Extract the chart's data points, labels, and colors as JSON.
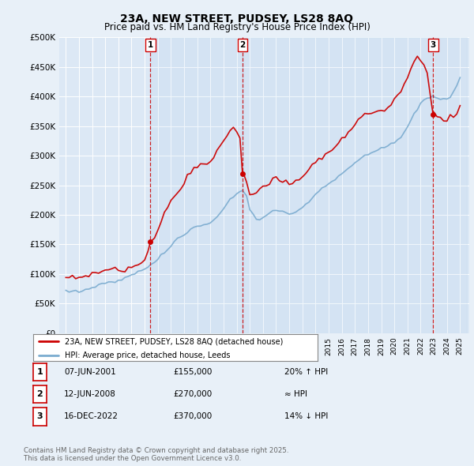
{
  "title": "23A, NEW STREET, PUDSEY, LS28 8AQ",
  "subtitle": "Price paid vs. HM Land Registry's House Price Index (HPI)",
  "bg_color": "#e8f0f8",
  "plot_bg_color": "#dce8f5",
  "ylim": [
    0,
    500000
  ],
  "yticks": [
    0,
    50000,
    100000,
    150000,
    200000,
    250000,
    300000,
    350000,
    400000,
    450000,
    500000
  ],
  "ytick_labels": [
    "£0",
    "£50K",
    "£100K",
    "£150K",
    "£200K",
    "£250K",
    "£300K",
    "£350K",
    "£400K",
    "£450K",
    "£500K"
  ],
  "sales": [
    {
      "date_num": 2001.44,
      "price": 155000,
      "label": "1"
    },
    {
      "date_num": 2008.44,
      "price": 270000,
      "label": "2"
    },
    {
      "date_num": 2022.96,
      "price": 370000,
      "label": "3"
    }
  ],
  "vline_color": "#cc0000",
  "line_color": "#cc0000",
  "hpi_color": "#7aabcf",
  "legend1_label": "23A, NEW STREET, PUDSEY, LS28 8AQ (detached house)",
  "legend2_label": "HPI: Average price, detached house, Leeds",
  "table": [
    {
      "num": "1",
      "date": "07-JUN-2001",
      "price": "£155,000",
      "rel": "20% ↑ HPI"
    },
    {
      "num": "2",
      "date": "12-JUN-2008",
      "price": "£270,000",
      "rel": "≈ HPI"
    },
    {
      "num": "3",
      "date": "16-DEC-2022",
      "price": "£370,000",
      "rel": "14% ↓ HPI"
    }
  ],
  "footer": "Contains HM Land Registry data © Crown copyright and database right 2025.\nThis data is licensed under the Open Government Licence v3.0.",
  "hpi_years": [
    1995.0,
    1995.25,
    1995.5,
    1995.75,
    1996.0,
    1996.25,
    1996.5,
    1996.75,
    1997.0,
    1997.25,
    1997.5,
    1997.75,
    1998.0,
    1998.25,
    1998.5,
    1998.75,
    1999.0,
    1999.25,
    1999.5,
    1999.75,
    2000.0,
    2000.25,
    2000.5,
    2000.75,
    2001.0,
    2001.25,
    2001.44,
    2001.5,
    2001.75,
    2002.0,
    2002.25,
    2002.5,
    2002.75,
    2003.0,
    2003.25,
    2003.5,
    2003.75,
    2004.0,
    2004.25,
    2004.5,
    2004.75,
    2005.0,
    2005.25,
    2005.5,
    2005.75,
    2006.0,
    2006.25,
    2006.5,
    2006.75,
    2007.0,
    2007.25,
    2007.5,
    2007.75,
    2008.0,
    2008.25,
    2008.44,
    2008.5,
    2008.75,
    2009.0,
    2009.25,
    2009.5,
    2009.75,
    2010.0,
    2010.25,
    2010.5,
    2010.75,
    2011.0,
    2011.25,
    2011.5,
    2011.75,
    2012.0,
    2012.25,
    2012.5,
    2012.75,
    2013.0,
    2013.25,
    2013.5,
    2013.75,
    2014.0,
    2014.25,
    2014.5,
    2014.75,
    2015.0,
    2015.25,
    2015.5,
    2015.75,
    2016.0,
    2016.25,
    2016.5,
    2016.75,
    2017.0,
    2017.25,
    2017.5,
    2017.75,
    2018.0,
    2018.25,
    2018.5,
    2018.75,
    2019.0,
    2019.25,
    2019.5,
    2019.75,
    2020.0,
    2020.25,
    2020.5,
    2020.75,
    2021.0,
    2021.25,
    2021.5,
    2021.75,
    2022.0,
    2022.25,
    2022.5,
    2022.75,
    2022.96,
    2023.0,
    2023.25,
    2023.5,
    2023.75,
    2024.0,
    2024.25,
    2024.5,
    2024.75,
    2025.0
  ],
  "hpi_values": [
    72000,
    71000,
    70000,
    71000,
    72000,
    73000,
    74000,
    75000,
    77000,
    79000,
    81000,
    83000,
    84000,
    85000,
    86000,
    87000,
    89000,
    91000,
    93000,
    96000,
    99000,
    101000,
    103000,
    106000,
    109000,
    112000,
    115000,
    116000,
    119000,
    124000,
    130000,
    136000,
    142000,
    148000,
    154000,
    159000,
    163000,
    167000,
    171000,
    175000,
    178000,
    180000,
    182000,
    183000,
    184000,
    186000,
    190000,
    196000,
    202000,
    210000,
    218000,
    226000,
    232000,
    236000,
    240000,
    242000,
    240000,
    230000,
    210000,
    200000,
    195000,
    192000,
    195000,
    198000,
    202000,
    206000,
    208000,
    207000,
    205000,
    204000,
    203000,
    204000,
    206000,
    208000,
    212000,
    217000,
    222000,
    228000,
    234000,
    240000,
    245000,
    249000,
    253000,
    257000,
    261000,
    265000,
    270000,
    274000,
    278000,
    282000,
    287000,
    292000,
    297000,
    301000,
    304000,
    307000,
    309000,
    311000,
    313000,
    315000,
    317000,
    319000,
    322000,
    326000,
    332000,
    340000,
    350000,
    360000,
    370000,
    380000,
    388000,
    394000,
    398000,
    400000,
    402000,
    400000,
    397000,
    395000,
    394000,
    396000,
    400000,
    408000,
    418000,
    430000
  ],
  "sold_years": [
    1995.0,
    1995.25,
    1995.5,
    1995.75,
    1996.0,
    1996.25,
    1996.5,
    1996.75,
    1997.0,
    1997.25,
    1997.5,
    1997.75,
    1998.0,
    1998.25,
    1998.5,
    1998.75,
    1999.0,
    1999.25,
    1999.5,
    1999.75,
    2000.0,
    2000.25,
    2000.5,
    2000.75,
    2001.0,
    2001.25,
    2001.44,
    2001.5,
    2001.75,
    2002.0,
    2002.25,
    2002.5,
    2002.75,
    2003.0,
    2003.25,
    2003.5,
    2003.75,
    2004.0,
    2004.25,
    2004.5,
    2004.75,
    2005.0,
    2005.25,
    2005.5,
    2005.75,
    2006.0,
    2006.25,
    2006.5,
    2006.75,
    2007.0,
    2007.25,
    2007.5,
    2007.75,
    2008.0,
    2008.25,
    2008.44,
    2008.5,
    2008.75,
    2009.0,
    2009.25,
    2009.5,
    2009.75,
    2010.0,
    2010.25,
    2010.5,
    2010.75,
    2011.0,
    2011.25,
    2011.5,
    2011.75,
    2012.0,
    2012.25,
    2012.5,
    2012.75,
    2013.0,
    2013.25,
    2013.5,
    2013.75,
    2014.0,
    2014.25,
    2014.5,
    2014.75,
    2015.0,
    2015.25,
    2015.5,
    2015.75,
    2016.0,
    2016.25,
    2016.5,
    2016.75,
    2017.0,
    2017.25,
    2017.5,
    2017.75,
    2018.0,
    2018.25,
    2018.5,
    2018.75,
    2019.0,
    2019.25,
    2019.5,
    2019.75,
    2020.0,
    2020.25,
    2020.5,
    2020.75,
    2021.0,
    2021.25,
    2021.5,
    2021.75,
    2022.0,
    2022.25,
    2022.5,
    2022.75,
    2022.96,
    2023.0,
    2023.25,
    2023.5,
    2023.75,
    2024.0,
    2024.25,
    2024.5,
    2024.75,
    2025.0
  ],
  "sold_values": [
    92000,
    93000,
    94000,
    95000,
    96000,
    97000,
    98000,
    99000,
    101000,
    103000,
    105000,
    107000,
    106000,
    105000,
    104000,
    104000,
    105000,
    107000,
    109000,
    111000,
    113000,
    115000,
    117000,
    119000,
    121000,
    138000,
    155000,
    158000,
    165000,
    175000,
    188000,
    200000,
    212000,
    222000,
    232000,
    240000,
    246000,
    254000,
    263000,
    272000,
    278000,
    282000,
    284000,
    285000,
    286000,
    290000,
    298000,
    308000,
    318000,
    328000,
    336000,
    342000,
    344000,
    340000,
    330000,
    270000,
    268000,
    255000,
    235000,
    232000,
    236000,
    240000,
    248000,
    252000,
    255000,
    258000,
    260000,
    258000,
    256000,
    255000,
    254000,
    255000,
    257000,
    260000,
    264000,
    270000,
    276000,
    282000,
    288000,
    294000,
    299000,
    303000,
    308000,
    312000,
    317000,
    322000,
    328000,
    334000,
    340000,
    346000,
    353000,
    359000,
    364000,
    368000,
    371000,
    373000,
    374000,
    375000,
    376000,
    378000,
    381000,
    385000,
    390000,
    398000,
    410000,
    422000,
    435000,
    448000,
    458000,
    465000,
    462000,
    455000,
    445000,
    400000,
    370000,
    375000,
    368000,
    365000,
    363000,
    362000,
    364000,
    368000,
    373000,
    380000
  ]
}
